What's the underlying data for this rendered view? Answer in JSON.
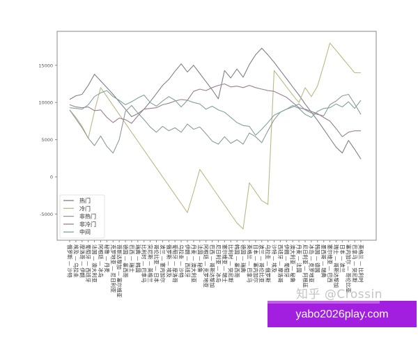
{
  "chart_data": {
    "type": "line",
    "title": "",
    "xlabel": "",
    "ylabel": "",
    "ylim": [
      -7800,
      19000
    ],
    "yticks": [
      -5000,
      0,
      5000,
      10000,
      15000
    ],
    "ytick_labels": [
      "-5000",
      "0",
      "5000",
      "10000",
      "15000"
    ],
    "grid": false,
    "legend_position": "lower left",
    "categories": [
      "俄罗斯 — 沙特",
      "埃及 — 乌拉圭",
      "摩洛哥 — 伊朗",
      "葡萄牙 — 西班牙",
      "法国 — 澳大利亚",
      "阿根廷 — 冰岛",
      "秘鲁 — 丹麦",
      "克罗地亚 — 尼日利亚",
      "哥斯达黎加 — 塞尔维亚",
      "德国 — 墨西哥",
      "巴西 — 瑞士",
      "瑞典 — 韩国",
      "比利时 — 巴拿马",
      "突尼斯 — 英格兰",
      "哥伦比亚 — 日本",
      "波兰 — 塞内加尔",
      "俄罗斯 — 埃及",
      "葡萄牙 — 摩洛哥",
      "乌拉圭 — 沙特",
      "伊朗 — 西班牙",
      "丹麦 — 澳大利亚",
      "法国 — 秘鲁",
      "阿根廷 — 克罗地亚",
      "巴西 — 哥斯达黎加",
      "尼日利亚 — 冰岛",
      "塞尔维亚 — 瑞士",
      "比利时 — 突尼斯",
      "韩国 — 墨西哥",
      "德国 — 瑞典",
      "英格兰 — 巴拿马",
      "日本 — 塞内加尔",
      "波兰 — 哥伦比亚",
      "乌拉圭 — 俄罗斯",
      "沙特 — 埃及",
      "西班牙 — 摩洛哥",
      "伊朗 — 葡萄牙",
      "澳大利亚 — 秘鲁",
      "丹麦 — 法国",
      "尼日利亚 — 阿根廷",
      "冰岛 — 克罗地亚",
      "韩国 — 德国",
      "墨西哥 — 瑞典",
      "塞尔维亚 — 巴西",
      "瑞士 — 哥斯达黎加",
      "日本 — 波兰",
      "塞内加尔 — 哥伦比亚",
      "巴拿马 — 突尼斯",
      "英格兰 — 比利时"
    ],
    "series": [
      {
        "name": "热门",
        "color": "#7f7f8c",
        "values": [
          10400,
          10900,
          11100,
          12300,
          13800,
          12900,
          12000,
          11100,
          10100,
          9100,
          8100,
          8500,
          9100,
          10100,
          11200,
          12300,
          13100,
          14200,
          15200,
          14100,
          15000,
          13900,
          12800,
          11700,
          10500,
          14300,
          13300,
          14500,
          13400,
          15100,
          16400,
          17300,
          16400,
          15400,
          14300,
          13200,
          12100,
          11000,
          9800,
          8700,
          7600,
          6400,
          5200,
          4000,
          3200,
          4900,
          3700,
          2400
        ]
      },
      {
        "name": "冷门",
        "color": "#bdb886",
        "values": [
          9000,
          8000,
          6800,
          5200,
          8800,
          12000,
          10800,
          9600,
          8400,
          7200,
          6000,
          4800,
          3600,
          2400,
          1200,
          0,
          -1200,
          -2400,
          -3600,
          -4800,
          -2000,
          1000,
          -200,
          -1400,
          -2600,
          -3800,
          -5000,
          -6200,
          -7000,
          -800,
          -2000,
          -3200,
          -3700,
          14300,
          13200,
          12100,
          11000,
          10000,
          12000,
          10800,
          12200,
          15000,
          18000,
          17000,
          16000,
          15000,
          14000,
          14000
        ]
      },
      {
        "name": "非热门",
        "color": "#8c9a9a",
        "values": [
          9000,
          7800,
          6600,
          5200,
          4200,
          5500,
          4100,
          3200,
          5000,
          8800,
          9600,
          8600,
          7700,
          6700,
          6000,
          6800,
          6200,
          6600,
          6000,
          7100,
          6400,
          6700,
          5800,
          4800,
          4400,
          5400,
          4500,
          5000,
          4400,
          5900,
          5400,
          4600,
          6200,
          7700,
          8700,
          9100,
          9400,
          9800,
          9000,
          8600,
          8400,
          8200,
          9700,
          10200,
          10900,
          11100,
          9800,
          8400
        ]
      },
      {
        "name": "非冷门",
        "color": "#9a7f92",
        "values": [
          9700,
          9400,
          9300,
          9400,
          8900,
          9000,
          8000,
          7300,
          7900,
          7700,
          7200,
          8200,
          9100,
          9200,
          9300,
          9700,
          9900,
          10200,
          10400,
          10300,
          11500,
          11800,
          11600,
          12000,
          12300,
          12500,
          12100,
          12200,
          12000,
          12300,
          12000,
          11800,
          11600,
          11500,
          11100,
          10700,
          10000,
          9300,
          9100,
          8800,
          8500,
          8000,
          7500,
          6500,
          5400,
          6000,
          6200,
          6200
        ]
      },
      {
        "name": "中间",
        "color": "#7fa39a",
        "values": [
          9300,
          9200,
          9100,
          9700,
          10800,
          11300,
          11600,
          10800,
          10300,
          9700,
          10100,
          10600,
          11000,
          10000,
          9500,
          10200,
          10800,
          10300,
          9400,
          10300,
          10000,
          9800,
          9100,
          9500,
          9000,
          8700,
          8000,
          7300,
          6900,
          6800,
          5600,
          6400,
          7300,
          8300,
          8700,
          9100,
          9600,
          9200,
          8400,
          8000,
          8800,
          9200,
          9300,
          9800,
          9400,
          10100,
          9200,
          10300
        ]
      }
    ]
  },
  "chart": {
    "legend": [
      {
        "label": "热门",
        "color": "#7f7f8c"
      },
      {
        "label": "冷门",
        "color": "#bdb886"
      },
      {
        "label": "非热门",
        "color": "#8c9a9a"
      },
      {
        "label": "非冷门",
        "color": "#9a7f92"
      },
      {
        "label": "中间",
        "color": "#7fa39a"
      }
    ]
  },
  "overlay": {
    "watermark": "知乎 @Crossin",
    "ad_text": "yabo2026play.com"
  }
}
